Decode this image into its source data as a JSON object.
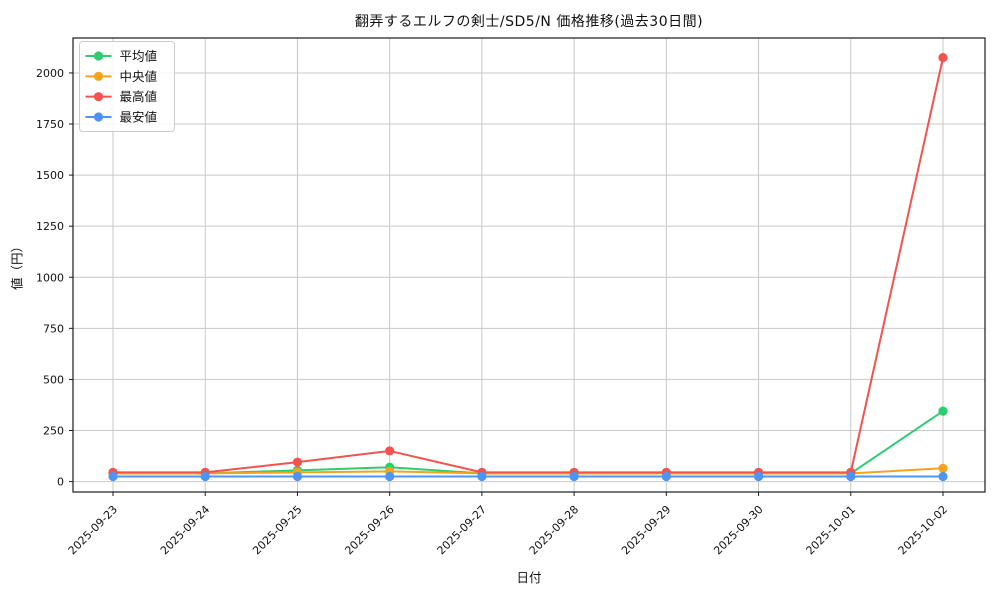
{
  "chart_data": {
    "type": "line",
    "title": "翻弄するエルフの剣士/SD5/N 価格推移(過去30日間)",
    "xlabel": "日付",
    "ylabel": "値（円）",
    "categories": [
      "2025-09-23",
      "2025-09-24",
      "2025-09-25",
      "2025-09-26",
      "2025-09-27",
      "2025-09-28",
      "2025-09-29",
      "2025-09-30",
      "2025-10-01",
      "2025-10-02"
    ],
    "series": [
      {
        "name": "平均値",
        "color": "#2ecc71",
        "values": [
          40,
          40,
          55,
          70,
          40,
          40,
          40,
          40,
          40,
          345
        ]
      },
      {
        "name": "中央値",
        "color": "#f5a31a",
        "values": [
          40,
          40,
          45,
          50,
          40,
          40,
          40,
          40,
          40,
          65
        ]
      },
      {
        "name": "最高値",
        "color": "#f3524f",
        "values": [
          45,
          45,
          95,
          150,
          45,
          45,
          45,
          45,
          45,
          2075
        ]
      },
      {
        "name": "最安値",
        "color": "#4d94f5",
        "values": [
          25,
          25,
          25,
          25,
          25,
          25,
          25,
          25,
          25,
          25
        ]
      }
    ],
    "yticks": [
      0,
      250,
      500,
      750,
      1000,
      1250,
      1500,
      1750,
      2000
    ],
    "ylim": [
      -51,
      2171
    ],
    "grid": true,
    "legend_position": "upper left",
    "colors": {
      "grid": "#c9c9c9",
      "spine": "#1a1a1a",
      "background": "#ffffff",
      "legend_border": "#cccccc"
    }
  }
}
